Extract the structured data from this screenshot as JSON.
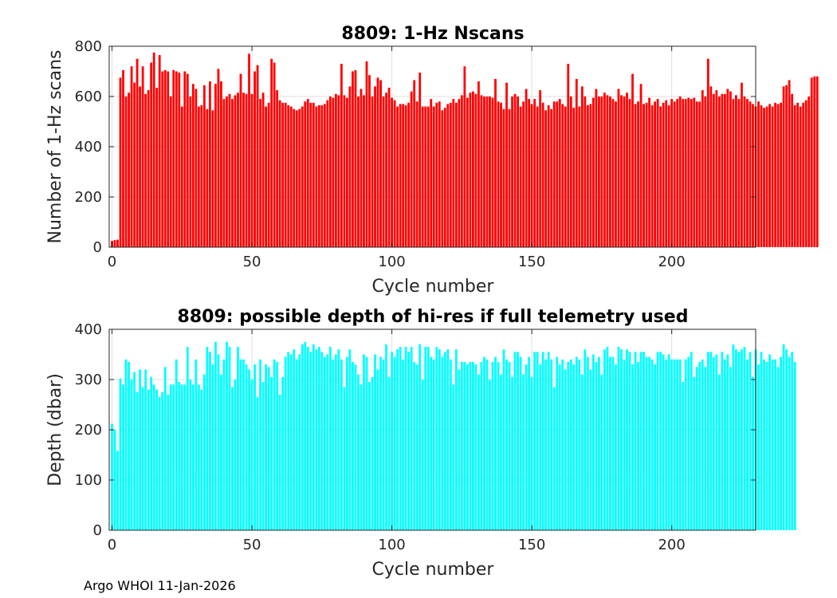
{
  "credit": "Argo WHOI 11-Jan-2026",
  "chart_data": [
    {
      "type": "bar",
      "title": "8809: 1-Hz Nscans",
      "xlabel": "Cycle number",
      "ylabel": "Number of 1-Hz scans",
      "xlim": [
        -1,
        230
      ],
      "ylim": [
        0,
        800
      ],
      "xticks": [
        0,
        50,
        100,
        150,
        200
      ],
      "yticks": [
        0,
        200,
        400,
        600,
        800
      ],
      "grid": true,
      "color": "#ff0000",
      "x_start": 0,
      "values": [
        25,
        28,
        30,
        675,
        705,
        600,
        615,
        720,
        655,
        750,
        640,
        720,
        610,
        625,
        735,
        775,
        635,
        765,
        700,
        705,
        700,
        600,
        705,
        700,
        695,
        560,
        700,
        690,
        600,
        650,
        630,
        560,
        565,
        645,
        550,
        660,
        545,
        650,
        710,
        660,
        590,
        600,
        610,
        590,
        605,
        615,
        690,
        615,
        610,
        770,
        610,
        700,
        725,
        590,
        615,
        560,
        575,
        750,
        735,
        625,
        585,
        575,
        575,
        565,
        560,
        550,
        545,
        550,
        560,
        580,
        590,
        575,
        575,
        560,
        565,
        565,
        570,
        585,
        600,
        595,
        610,
        605,
        730,
        605,
        595,
        640,
        700,
        705,
        600,
        630,
        605,
        740,
        685,
        600,
        640,
        675,
        665,
        600,
        615,
        635,
        595,
        585,
        560,
        570,
        570,
        565,
        575,
        620,
        665,
        580,
        695,
        560,
        560,
        560,
        590,
        560,
        575,
        580,
        545,
        555,
        570,
        575,
        590,
        575,
        590,
        605,
        720,
        595,
        615,
        620,
        610,
        660,
        605,
        600,
        600,
        600,
        595,
        670,
        580,
        575,
        550,
        655,
        550,
        600,
        610,
        600,
        560,
        580,
        630,
        590,
        570,
        590,
        560,
        625,
        575,
        545,
        565,
        550,
        580,
        580,
        590,
        570,
        560,
        730,
        600,
        555,
        670,
        560,
        640,
        600,
        565,
        570,
        595,
        630,
        600,
        600,
        615,
        605,
        600,
        590,
        580,
        630,
        605,
        600,
        615,
        590,
        690,
        570,
        580,
        650,
        570,
        575,
        595,
        565,
        580,
        590,
        560,
        575,
        585,
        565,
        590,
        580,
        590,
        600,
        590,
        590,
        595,
        590,
        595,
        580,
        580,
        625,
        600,
        750,
        640,
        610,
        625,
        600,
        610,
        610,
        630,
        620,
        590,
        605,
        590,
        655,
        600,
        590,
        580,
        570,
        560,
        580,
        565,
        555,
        560,
        570,
        560,
        575,
        570,
        575,
        640,
        645,
        665,
        610,
        565,
        575,
        560,
        575,
        585,
        600,
        675,
        680,
        680
      ]
    },
    {
      "type": "bar",
      "title": "8809: possible depth of hi-res if full telemetry used",
      "xlabel": "Cycle number",
      "ylabel": "Depth (dbar)",
      "xlim": [
        -1,
        230
      ],
      "ylim": [
        0,
        400
      ],
      "xticks": [
        0,
        50,
        100,
        150,
        200
      ],
      "yticks": [
        0,
        100,
        200,
        300,
        400
      ],
      "grid": true,
      "color": "#00ffff",
      "x_start": 0,
      "values": [
        212,
        200,
        158,
        302,
        290,
        340,
        335,
        300,
        315,
        275,
        320,
        285,
        320,
        280,
        305,
        290,
        280,
        265,
        275,
        325,
        270,
        290,
        290,
        340,
        295,
        290,
        290,
        365,
        300,
        290,
        340,
        290,
        280,
        310,
        365,
        355,
        330,
        375,
        350,
        310,
        340,
        375,
        365,
        285,
        300,
        365,
        340,
        340,
        330,
        320,
        300,
        330,
        265,
        340,
        295,
        330,
        325,
        305,
        340,
        335,
        270,
        305,
        345,
        355,
        350,
        360,
        340,
        350,
        370,
        375,
        365,
        355,
        370,
        360,
        365,
        355,
        345,
        350,
        365,
        340,
        350,
        360,
        340,
        285,
        345,
        360,
        335,
        330,
        310,
        290,
        350,
        345,
        295,
        305,
        350,
        320,
        345,
        340,
        370,
        305,
        355,
        345,
        360,
        365,
        340,
        365,
        355,
        365,
        335,
        330,
        370,
        300,
        365,
        365,
        345,
        340,
        365,
        360,
        345,
        355,
        360,
        340,
        290,
        360,
        320,
        335,
        335,
        330,
        335,
        335,
        330,
        310,
        335,
        345,
        340,
        300,
        335,
        345,
        335,
        310,
        360,
        340,
        335,
        305,
        355,
        355,
        345,
        310,
        330,
        345,
        305,
        355,
        355,
        330,
        355,
        340,
        355,
        340,
        285,
        345,
        330,
        340,
        320,
        335,
        340,
        330,
        345,
        340,
        310,
        360,
        345,
        320,
        350,
        335,
        345,
        310,
        360,
        365,
        345,
        345,
        330,
        365,
        360,
        340,
        360,
        355,
        330,
        355,
        335,
        355,
        355,
        345,
        345,
        340,
        330,
        355,
        355,
        350,
        340,
        350,
        340,
        340,
        340,
        340,
        295,
        340,
        345,
        355,
        305,
        325,
        335,
        340,
        325,
        355,
        355,
        345,
        350,
        310,
        355,
        340,
        350,
        325,
        370,
        360,
        355,
        360,
        365,
        340,
        355,
        305,
        360,
        330,
        355,
        340,
        335,
        350,
        340,
        340,
        325,
        345,
        370,
        360,
        345,
        355,
        335
      ]
    }
  ]
}
